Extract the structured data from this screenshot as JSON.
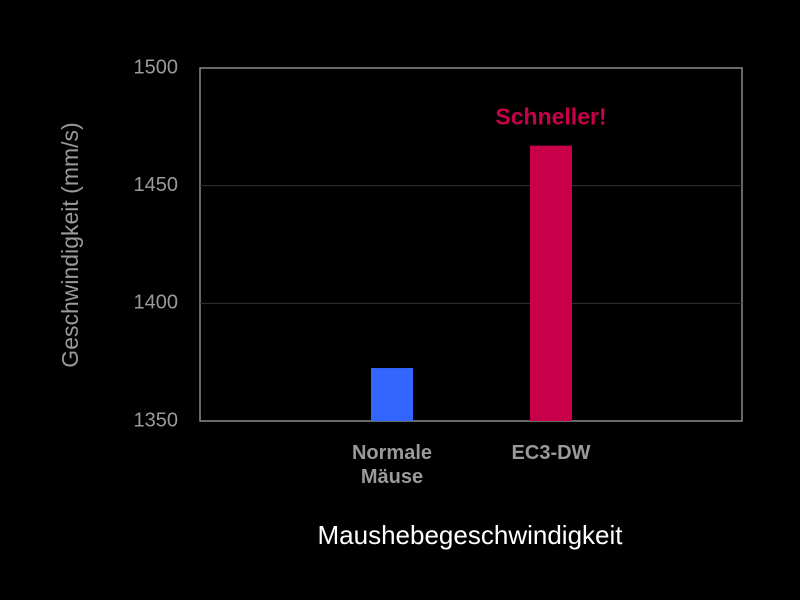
{
  "chart_data": {
    "type": "bar",
    "categories": [
      "Normale\nMäuse",
      "EC3-DW"
    ],
    "values": [
      1372.5,
      1467
    ],
    "colors": [
      "#3366ff",
      "#c8004a"
    ],
    "annotation": "Schneller!",
    "annotation_color": "#c8004a",
    "ylabel": "Geschwindigkeit (mm/s)",
    "xlabel": "Maushebegeschwindigkeit",
    "ylim": [
      1350,
      1500
    ],
    "yticks": [
      1350,
      1400,
      1450,
      1500
    ],
    "grid": true
  }
}
